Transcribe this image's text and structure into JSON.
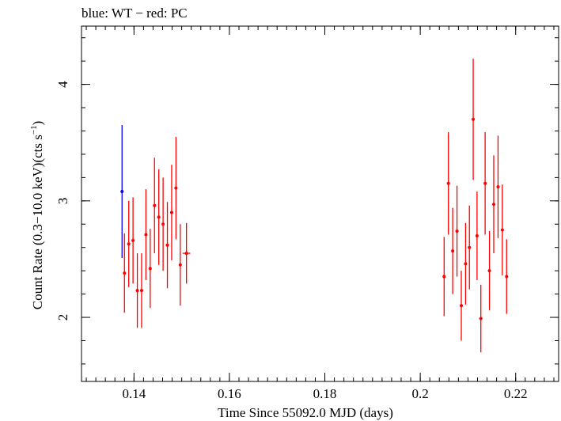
{
  "chart_data": {
    "type": "scatter",
    "title": "blue: WT − red: PC",
    "xlabel": "Time Since 55092.0 MJD (days)",
    "ylabel_main": "Count Rate (0.3−10.0 keV)(cts s",
    "ylabel_sup": "−1",
    "ylabel_close": ")",
    "xlim": [
      0.129,
      0.229
    ],
    "ylim": [
      1.45,
      4.5
    ],
    "x_ticks": [
      0.14,
      0.16,
      0.18,
      0.2,
      0.22
    ],
    "x_tick_labels": [
      "0.14",
      "0.16",
      "0.18",
      "0.2",
      "0.22"
    ],
    "x_minor_step": 0.002,
    "y_ticks": [
      2,
      3,
      4
    ],
    "y_tick_labels": [
      "2",
      "3",
      "4"
    ],
    "y_minor_step": 0.2,
    "grid": false,
    "series": [
      {
        "color": "#0000ff",
        "points": [
          {
            "x": 0.1375,
            "y": 3.08,
            "err": 0.57,
            "xerr": 0.0
          }
        ]
      },
      {
        "color": "#ff0000",
        "points": [
          {
            "x": 0.138,
            "y": 2.38,
            "err": 0.34,
            "xerr": 0.0003
          },
          {
            "x": 0.1389,
            "y": 2.63,
            "err": 0.37,
            "xerr": 0.0003
          },
          {
            "x": 0.1398,
            "y": 2.66,
            "err": 0.37,
            "xerr": 0.0003
          },
          {
            "x": 0.1407,
            "y": 2.23,
            "err": 0.32,
            "xerr": 0.0003
          },
          {
            "x": 0.1416,
            "y": 2.23,
            "err": 0.32,
            "xerr": 0.0003
          },
          {
            "x": 0.1425,
            "y": 2.71,
            "err": 0.39,
            "xerr": 0.0003
          },
          {
            "x": 0.1434,
            "y": 2.42,
            "err": 0.34,
            "xerr": 0.0003
          },
          {
            "x": 0.1443,
            "y": 2.96,
            "err": 0.41,
            "xerr": 0.0003
          },
          {
            "x": 0.1452,
            "y": 2.86,
            "err": 0.41,
            "xerr": 0.0003
          },
          {
            "x": 0.1461,
            "y": 2.8,
            "err": 0.4,
            "xerr": 0.0003
          },
          {
            "x": 0.147,
            "y": 2.62,
            "err": 0.37,
            "xerr": 0.0003
          },
          {
            "x": 0.1479,
            "y": 2.9,
            "err": 0.41,
            "xerr": 0.0003
          },
          {
            "x": 0.1488,
            "y": 3.11,
            "err": 0.44,
            "xerr": 0.0003
          },
          {
            "x": 0.1497,
            "y": 2.45,
            "err": 0.35,
            "xerr": 0.0003
          },
          {
            "x": 0.151,
            "y": 2.55,
            "err": 0.26,
            "xerr": 0.0008
          },
          {
            "x": 0.205,
            "y": 2.35,
            "err": 0.34,
            "xerr": 0.0003
          },
          {
            "x": 0.2059,
            "y": 3.15,
            "err": 0.44,
            "xerr": 0.0003
          },
          {
            "x": 0.2068,
            "y": 2.57,
            "err": 0.37,
            "xerr": 0.0003
          },
          {
            "x": 0.2077,
            "y": 2.74,
            "err": 0.39,
            "xerr": 0.0003
          },
          {
            "x": 0.2086,
            "y": 2.1,
            "err": 0.3,
            "xerr": 0.0003
          },
          {
            "x": 0.2095,
            "y": 2.46,
            "err": 0.35,
            "xerr": 0.0003
          },
          {
            "x": 0.2103,
            "y": 2.6,
            "err": 0.36,
            "xerr": 0.0003
          },
          {
            "x": 0.2111,
            "y": 3.7,
            "err": 0.52,
            "xerr": 0.0003
          },
          {
            "x": 0.2119,
            "y": 2.7,
            "err": 0.38,
            "xerr": 0.0003
          },
          {
            "x": 0.2127,
            "y": 1.99,
            "err": 0.29,
            "xerr": 0.0003
          },
          {
            "x": 0.2136,
            "y": 3.15,
            "err": 0.44,
            "xerr": 0.0003
          },
          {
            "x": 0.2145,
            "y": 2.4,
            "err": 0.34,
            "xerr": 0.0003
          },
          {
            "x": 0.2154,
            "y": 2.97,
            "err": 0.42,
            "xerr": 0.0003
          },
          {
            "x": 0.2163,
            "y": 3.12,
            "err": 0.44,
            "xerr": 0.0003
          },
          {
            "x": 0.2172,
            "y": 2.75,
            "err": 0.39,
            "xerr": 0.0003
          },
          {
            "x": 0.2181,
            "y": 2.35,
            "err": 0.32,
            "xerr": 0.0003
          }
        ]
      }
    ]
  }
}
